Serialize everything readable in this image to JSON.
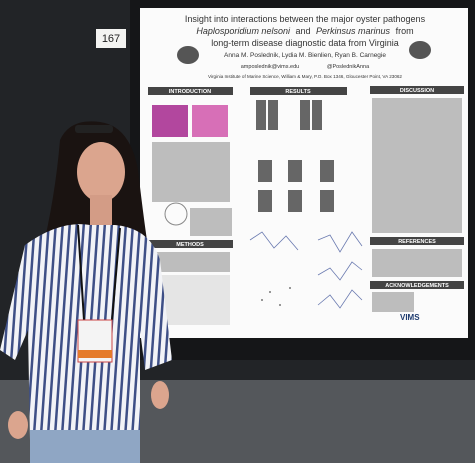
{
  "poster_number": "167",
  "poster": {
    "title_line_1": "Insight into interactions between the major oyster pathogens",
    "title_line_2": [
      "Haplosporidium nelsoni",
      "and",
      "Perkinsus marinus",
      "from"
    ],
    "title_line_3": "long-term disease diagnostic data from Virginia",
    "authors": "Anna M. Poslednik, Lydia M. Bienlien, Ryan B. Carnegie",
    "email": "amposlednik@vims.edu",
    "twitter": "@PoslednikAnna",
    "affiliation": "Virginia Institute of Marine Science, William & Mary, P.O. Box 1346, Gloucester Point, VA 23062",
    "sections": [
      "INTRODUCTION",
      "RESULTS",
      "DISCUSSION",
      "METHODS",
      "REFERENCES",
      "ACKNOWLEDGEMENTS"
    ],
    "logo": "VIMS"
  }
}
